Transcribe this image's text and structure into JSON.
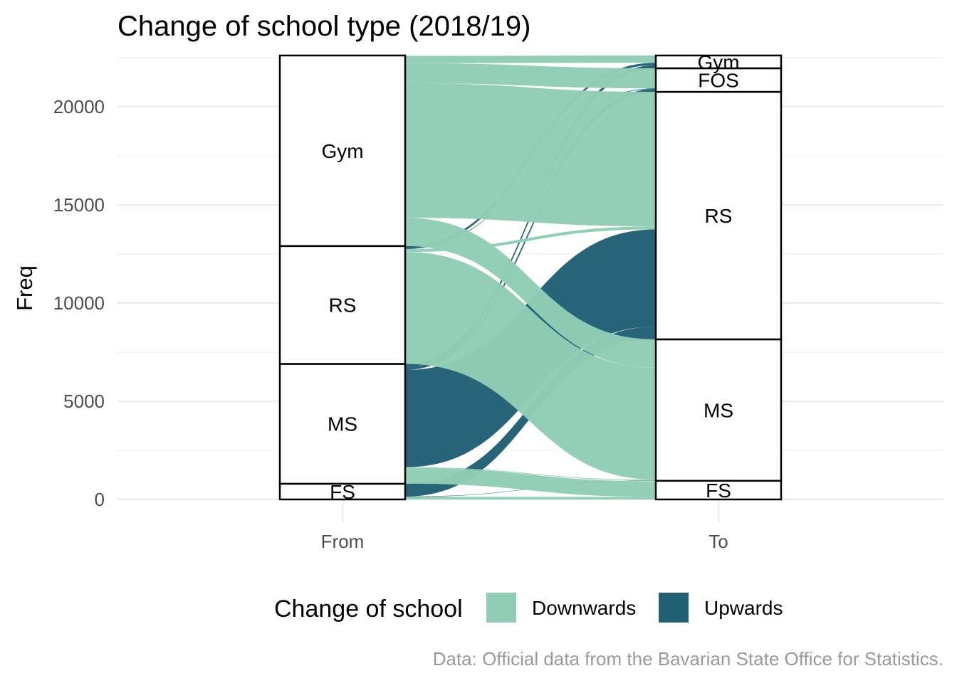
{
  "chart_data": {
    "type": "alluvial",
    "title": "Change of school type (2018/19)",
    "ylabel": "Freq",
    "xlabel": "",
    "axes": [
      "From",
      "To"
    ],
    "ylim": [
      0,
      22600
    ],
    "yticks": [
      0,
      5000,
      10000,
      15000,
      20000
    ],
    "legend": {
      "title": "Change of school",
      "position": "bottom",
      "entries": [
        {
          "name": "Downwards",
          "color": "#8fcdb5"
        },
        {
          "name": "Upwards",
          "color": "#215f73"
        }
      ]
    },
    "strata": {
      "From": [
        {
          "label": "FS",
          "value": 800
        },
        {
          "label": "MS",
          "value": 6100
        },
        {
          "label": "RS",
          "value": 6000
        },
        {
          "label": "Gym",
          "value": 9700
        }
      ],
      "To": [
        {
          "label": "FS",
          "value": 950
        },
        {
          "label": "MS",
          "value": 7200
        },
        {
          "label": "RS",
          "value": 12600
        },
        {
          "label": "FOS",
          "value": 1200
        },
        {
          "label": "Gym",
          "value": 650
        }
      ]
    },
    "flows": [
      {
        "from": "FS",
        "to": "FS",
        "value": 130,
        "direction": "Downwards"
      },
      {
        "from": "FS",
        "to": "MS",
        "value": 20,
        "direction": "Upwards"
      },
      {
        "from": "FS",
        "to": "RS",
        "value": 650,
        "direction": "Upwards"
      },
      {
        "from": "MS",
        "to": "FS",
        "value": 800,
        "direction": "Downwards"
      },
      {
        "from": "MS",
        "to": "MS",
        "value": 40,
        "direction": "Downwards"
      },
      {
        "from": "MS",
        "to": "RS",
        "value": 4950,
        "direction": "Upwards"
      },
      {
        "from": "MS",
        "to": "FOS",
        "value": 150,
        "direction": "Upwards"
      },
      {
        "from": "MS",
        "to": "Gym",
        "value": 160,
        "direction": "Upwards"
      },
      {
        "from": "RS",
        "to": "MS",
        "value": 5700,
        "direction": "Downwards"
      },
      {
        "from": "RS",
        "to": "RS",
        "value": 150,
        "direction": "Downwards"
      },
      {
        "from": "RS",
        "to": "FOS",
        "value": 30,
        "direction": "Upwards"
      },
      {
        "from": "RS",
        "to": "Gym",
        "value": 120,
        "direction": "Upwards"
      },
      {
        "from": "Gym",
        "to": "MS",
        "value": 1440,
        "direction": "Downwards"
      },
      {
        "from": "Gym",
        "to": "RS",
        "value": 6850,
        "direction": "Downwards"
      },
      {
        "from": "Gym",
        "to": "FOS",
        "value": 1020,
        "direction": "Downwards"
      },
      {
        "from": "Gym",
        "to": "Gym",
        "value": 370,
        "direction": "Downwards"
      }
    ],
    "caption": "Data: Official data from the Bavarian State Office for Statistics.",
    "grid": true
  }
}
